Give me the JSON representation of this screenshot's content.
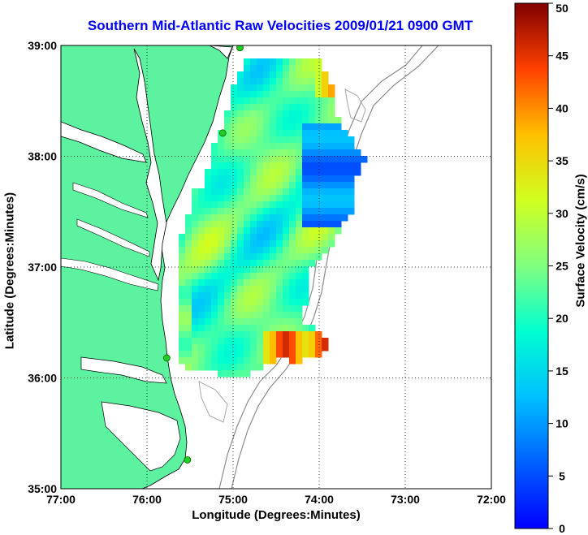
{
  "title": "Southern Mid-Atlantic Raw Velocities 2009/01/21 0900 GMT",
  "axes": {
    "xlabel": "Longitude (Degrees:Minutes)",
    "ylabel": "Latitude (Degrees:Minutes)",
    "xticks": [
      "77:00",
      "76:00",
      "75:00",
      "74:00",
      "73:00",
      "72:00"
    ],
    "yticks": [
      "39:00",
      "38:00",
      "37:00",
      "36:00",
      "35:00"
    ],
    "x_range_deg_west": [
      77,
      72
    ],
    "y_range_deg_north": [
      35,
      39
    ],
    "grid": "dotted"
  },
  "colorbar": {
    "label": "Surface Velocity (cm/s)",
    "ticks": [
      "50",
      "45",
      "40",
      "35",
      "30",
      "25",
      "20",
      "15",
      "10",
      "5",
      "0"
    ],
    "range": [
      0,
      50
    ],
    "colormap": "jet"
  },
  "colors": {
    "land": "#5cf2a0",
    "title": "#0000ff",
    "station": "#22cc22"
  },
  "chart_data": {
    "type": "heatmap",
    "title": "Southern Mid-Atlantic Raw Velocities 2009/01/21 0900 GMT",
    "xlabel": "Longitude (Degrees:Minutes)",
    "ylabel": "Latitude (Degrees:Minutes)",
    "zlabel": "Surface Velocity (cm/s)",
    "xlim": [
      77,
      72
    ],
    "ylim": [
      35,
      39
    ],
    "zlim": [
      0,
      50
    ],
    "stations": [
      {
        "lon": 74.92,
        "lat": 38.98
      },
      {
        "lon": 75.12,
        "lat": 38.21
      },
      {
        "lon": 75.77,
        "lat": 36.18
      },
      {
        "lon": 75.53,
        "lat": 35.26
      }
    ]
  }
}
